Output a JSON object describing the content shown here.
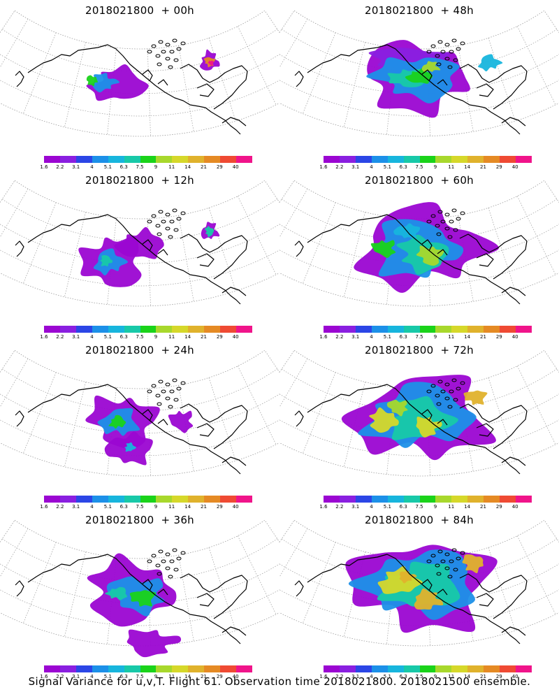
{
  "caption": "Signal Variance for u,v,T. Flight 61. Observation time 2018021800. 2018021500 ensemble.",
  "legend": {
    "colors": [
      "#9b06d2",
      "#8a1fe0",
      "#2b46e6",
      "#1c90e8",
      "#17b5dd",
      "#18c9a8",
      "#1ad31a",
      "#a8d82c",
      "#d6d82a",
      "#e0b22c",
      "#e58a24",
      "#ef4a33",
      "#f0148a"
    ],
    "ticks": [
      "1.6",
      "2.2",
      "3.1",
      "4",
      "5.1",
      "6.3",
      "7.5",
      "9",
      "11",
      "14",
      "21",
      "29",
      "40"
    ]
  },
  "panels": [
    {
      "id": "p00",
      "title": "2018021800  + 00h"
    },
    {
      "id": "p48",
      "title": "2018021800  + 48h"
    },
    {
      "id": "p12",
      "title": "2018021800  + 12h"
    },
    {
      "id": "p60",
      "title": "2018021800  + 60h"
    },
    {
      "id": "p24",
      "title": "2018021800  + 24h"
    },
    {
      "id": "p72",
      "title": "2018021800  + 72h"
    },
    {
      "id": "p36",
      "title": "2018021800  + 36h"
    },
    {
      "id": "p84",
      "title": "2018021800  + 84h"
    }
  ]
}
